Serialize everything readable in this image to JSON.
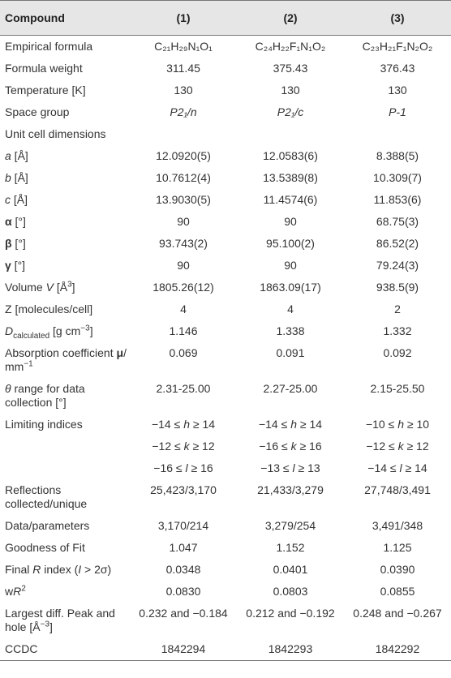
{
  "table": {
    "header": [
      "Compound",
      "(1)",
      "(2)",
      "(3)"
    ],
    "rows": [
      [
        [
          "Empirical formula"
        ],
        [
          "C₂₁H₂₉N₁O₁"
        ],
        [
          "C₂₄H₂₂F₁N₁O₂"
        ],
        [
          "C₂₃H₂₁F₁N₂O₂"
        ]
      ],
      [
        [
          "Formula weight"
        ],
        [
          "311.45"
        ],
        [
          "375.43"
        ],
        [
          "376.43"
        ]
      ],
      [
        [
          "Temperature [K]"
        ],
        [
          "130"
        ],
        [
          "130"
        ],
        [
          "130"
        ]
      ],
      [
        [
          "Space group"
        ],
        [
          {
            "text": "P2₁/n",
            "style": "i"
          }
        ],
        [
          {
            "text": "P2₁/c",
            "style": "i"
          }
        ],
        [
          {
            "text": "P-1",
            "style": "i"
          }
        ]
      ],
      [
        [
          "Unit cell dimensions"
        ],
        null,
        null,
        null
      ],
      [
        [
          {
            "text": "a",
            "style": "i"
          },
          " [Å]"
        ],
        [
          "12.0920(5)"
        ],
        [
          "12.0583(6)"
        ],
        [
          "8.388(5)"
        ]
      ],
      [
        [
          {
            "text": "b",
            "style": "i"
          },
          " [Å]"
        ],
        [
          "10.7612(4)"
        ],
        [
          "13.5389(8)"
        ],
        [
          "10.309(7)"
        ]
      ],
      [
        [
          {
            "text": "c",
            "style": "i"
          },
          " [Å]"
        ],
        [
          "13.9030(5)"
        ],
        [
          "11.4574(6)"
        ],
        [
          "11.853(6)"
        ]
      ],
      [
        [
          {
            "text": "α",
            "style": "b"
          },
          " [°]"
        ],
        [
          "90"
        ],
        [
          "90"
        ],
        [
          "68.75(3)"
        ]
      ],
      [
        [
          {
            "text": "β",
            "style": "b"
          },
          " [°]"
        ],
        [
          "93.743(2)"
        ],
        [
          "95.100(2)"
        ],
        [
          "86.52(2)"
        ]
      ],
      [
        [
          {
            "text": "γ",
            "style": "b"
          },
          " [°]"
        ],
        [
          "90"
        ],
        [
          "90"
        ],
        [
          "79.24(3)"
        ]
      ],
      [
        [
          "Volume ",
          {
            "text": "V",
            "style": "i"
          },
          " [Å",
          {
            "text": "3",
            "style": "sup"
          },
          "]"
        ],
        [
          "1805.26(12)"
        ],
        [
          "1863.09(17)"
        ],
        [
          "938.5(9)"
        ]
      ],
      [
        [
          "Z [molecules/cell]"
        ],
        [
          "4"
        ],
        [
          "4"
        ],
        [
          "2"
        ]
      ],
      [
        [
          {
            "text": "D",
            "style": "i"
          },
          {
            "text": "calculated",
            "style": "sub"
          },
          " [g cm",
          {
            "text": "−3",
            "style": "sup"
          },
          "]"
        ],
        [
          "1.146"
        ],
        [
          "1.338"
        ],
        [
          "1.332"
        ]
      ],
      [
        [
          "Absorption coefficient ",
          {
            "text": "μ",
            "style": "b"
          },
          "/ mm",
          {
            "text": "−1",
            "style": "sup"
          }
        ],
        [
          "0.069"
        ],
        [
          "0.091"
        ],
        [
          "0.092"
        ]
      ],
      [
        [
          {
            "text": "θ",
            "style": "i"
          },
          " range for data collection [°]"
        ],
        [
          "2.31-25.00"
        ],
        [
          "2.27-25.00"
        ],
        [
          "2.15-25.50"
        ]
      ],
      [
        [
          "Limiting indices"
        ],
        [
          "−14 ≤ ",
          {
            "text": "h",
            "style": "i"
          },
          " ≥ 14"
        ],
        [
          "−14 ≤ ",
          {
            "text": "h",
            "style": "i"
          },
          " ≥ 14"
        ],
        [
          "−10 ≤ ",
          {
            "text": "h",
            "style": "i"
          },
          " ≥ 10"
        ]
      ],
      [
        null,
        [
          "−12 ≤ ",
          {
            "text": "k",
            "style": "i"
          },
          " ≥ 12"
        ],
        [
          "−16 ≤ ",
          {
            "text": "k",
            "style": "i"
          },
          " ≥ 16"
        ],
        [
          "−12 ≤ ",
          {
            "text": "k",
            "style": "i"
          },
          " ≥ 12"
        ]
      ],
      [
        null,
        [
          "−16 ≤ ",
          {
            "text": "l",
            "style": "i"
          },
          " ≥ 16"
        ],
        [
          "−13 ≤ ",
          {
            "text": "l",
            "style": "i"
          },
          " ≥ 13"
        ],
        [
          "−14 ≤ ",
          {
            "text": "l",
            "style": "i"
          },
          " ≥ 14"
        ]
      ],
      [
        [
          "Reflections collected/unique"
        ],
        [
          "25,423/3,170"
        ],
        [
          "21,433/3,279"
        ],
        [
          "27,748/3,491"
        ]
      ],
      [
        [
          "Data/parameters"
        ],
        [
          "3,170/214"
        ],
        [
          "3,279/254"
        ],
        [
          "3,491/348"
        ]
      ],
      [
        [
          "Goodness of Fit"
        ],
        [
          "1.047"
        ],
        [
          "1.152"
        ],
        [
          "1.125"
        ]
      ],
      [
        [
          "Final ",
          {
            "text": "R",
            "style": "i"
          },
          " index (",
          {
            "text": "I",
            "style": "i"
          },
          " > 2σ)"
        ],
        [
          "0.0348"
        ],
        [
          "0.0401"
        ],
        [
          "0.0390"
        ]
      ],
      [
        [
          "w",
          {
            "text": "R",
            "style": "i"
          },
          {
            "text": "2",
            "style": "sup"
          }
        ],
        [
          "0.0830"
        ],
        [
          "0.0803"
        ],
        [
          "0.0855"
        ]
      ],
      [
        [
          "Largest diff. Peak and hole [Å",
          {
            "text": "−3",
            "style": "sup"
          },
          "]"
        ],
        [
          "0.232 and −0.184"
        ],
        [
          "0.212 and −0.192"
        ],
        [
          "0.248 and −0.267"
        ]
      ],
      [
        [
          "CCDC"
        ],
        [
          "1842294"
        ],
        [
          "1842293"
        ],
        [
          "1842292"
        ]
      ]
    ]
  }
}
